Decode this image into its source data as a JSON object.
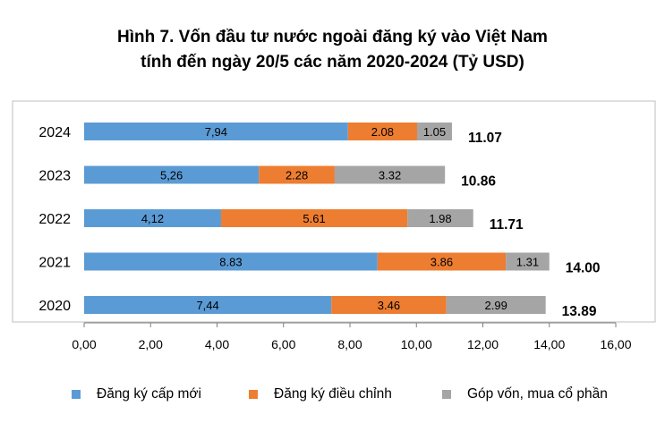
{
  "chart_data": {
    "type": "bar",
    "orientation": "horizontal",
    "stacked": true,
    "title": "Hình 7. Vốn đầu tư nước ngoài đăng ký vào Việt Nam",
    "subtitle": "tính đến ngày 20/5 các năm 2020-2024 (Tỷ USD)",
    "categories": [
      "2024",
      "2023",
      "2022",
      "2021",
      "2020"
    ],
    "series": [
      {
        "name": "Đăng ký cấp mới",
        "color": "#5B9BD5",
        "values": [
          7.94,
          5.26,
          4.12,
          8.83,
          7.44
        ],
        "labels": [
          "7,94",
          "5,26",
          "4,12",
          "8.83",
          "7,44"
        ]
      },
      {
        "name": "Đăng ký điều chỉnh",
        "color": "#ED7D31",
        "values": [
          2.08,
          2.28,
          5.61,
          3.86,
          3.46
        ],
        "labels": [
          "2.08",
          "2.28",
          "5.61",
          "3.86",
          "3.46"
        ]
      },
      {
        "name": "Góp vốn, mua cổ phần",
        "color": "#A5A5A5",
        "values": [
          1.05,
          3.32,
          1.98,
          1.31,
          2.99
        ],
        "labels": [
          "1.05",
          "3.32",
          "1.98",
          "1.31",
          "2.99"
        ]
      }
    ],
    "totals": [
      "11.07",
      "10.86",
      "11.71",
      "14.00",
      "13.89"
    ],
    "x_ticks": [
      "0,00",
      "2,00",
      "4,00",
      "6,00",
      "8,00",
      "10,00",
      "12,00",
      "14,00",
      "16,00"
    ],
    "xlim": [
      0,
      16
    ],
    "xlabel": "",
    "ylabel": "",
    "legend_position": "bottom"
  }
}
